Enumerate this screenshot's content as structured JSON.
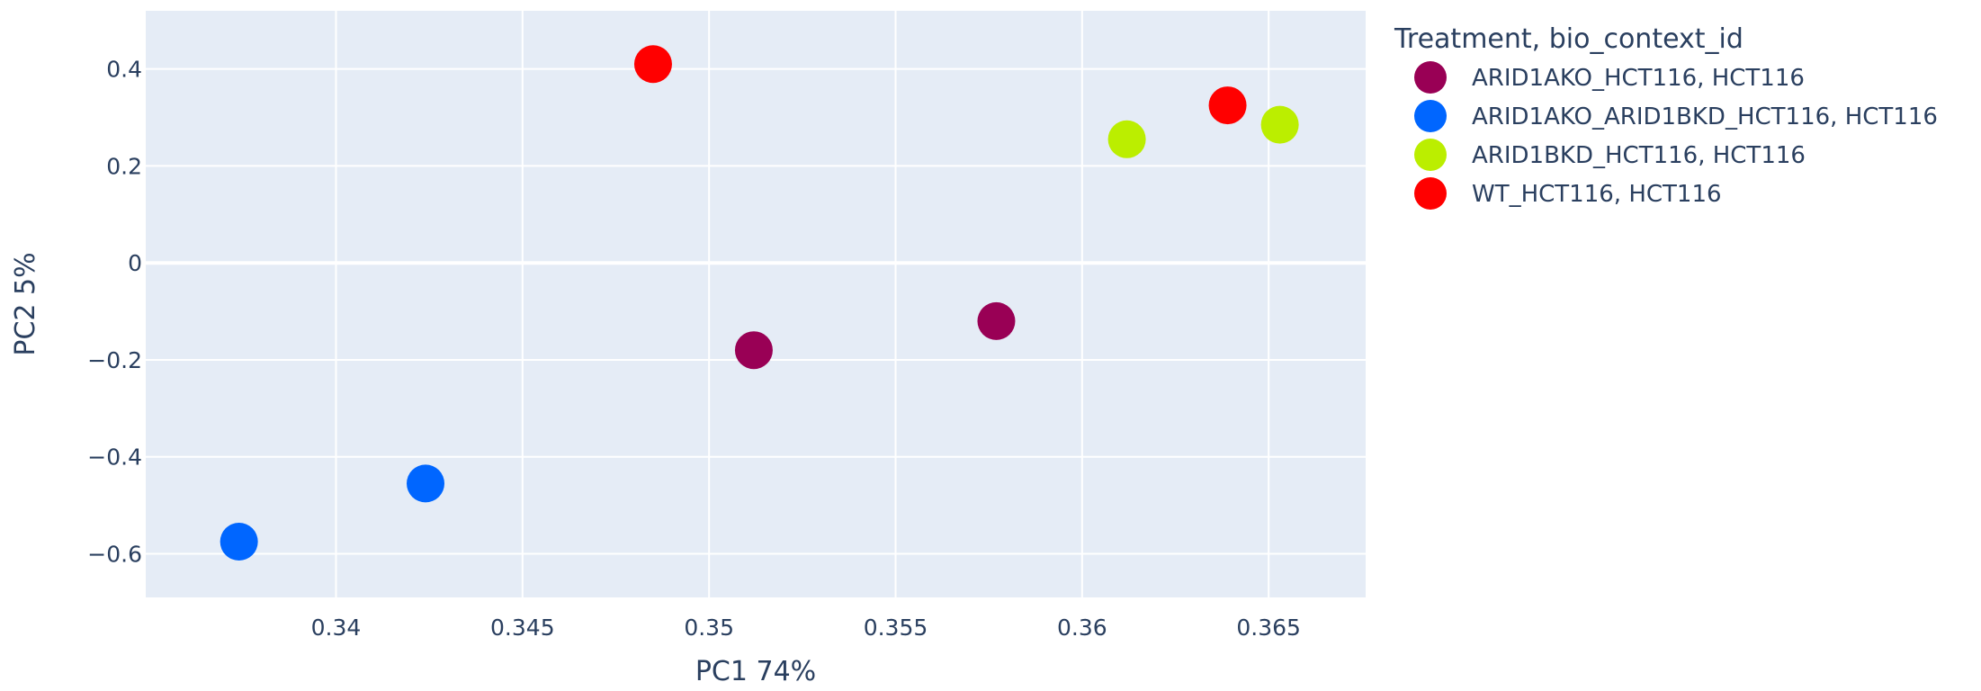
{
  "chart_data": {
    "type": "scatter",
    "xlabel": "PC1 74%",
    "ylabel": "PC2 5%",
    "xlim": [
      0.3349,
      0.3676
    ],
    "ylim": [
      -0.69,
      0.52
    ],
    "xticks": [
      0.34,
      0.345,
      0.35,
      0.355,
      0.36,
      0.365
    ],
    "xtick_labels": [
      "0.34",
      "0.345",
      "0.35",
      "0.355",
      "0.36",
      "0.365"
    ],
    "yticks": [
      -0.6,
      -0.4,
      -0.2,
      0,
      0.2,
      0.4
    ],
    "ytick_labels": [
      "−0.6",
      "−0.4",
      "−0.2",
      "0",
      "0.2",
      "0.4"
    ],
    "grid": true,
    "legend": {
      "title": "Treatment, bio_context_id",
      "placement": "right"
    },
    "series": [
      {
        "name": "ARID1AKO_HCT116, HCT116",
        "color": "#990055",
        "points": [
          {
            "x": 0.3512,
            "y": -0.18
          },
          {
            "x": 0.3577,
            "y": -0.12
          }
        ]
      },
      {
        "name": "ARID1AKO_ARID1BKD_HCT116, HCT116",
        "color": "#0066ff",
        "points": [
          {
            "x": 0.3374,
            "y": -0.575
          },
          {
            "x": 0.3424,
            "y": -0.455
          }
        ]
      },
      {
        "name": "ARID1BKD_HCT116, HCT116",
        "color": "#bbee00",
        "points": [
          {
            "x": 0.3612,
            "y": 0.255
          },
          {
            "x": 0.3653,
            "y": 0.285
          }
        ]
      },
      {
        "name": "WT_HCT116, HCT116",
        "color": "#ff0000",
        "points": [
          {
            "x": 0.3485,
            "y": 0.41
          },
          {
            "x": 0.3639,
            "y": 0.325
          }
        ]
      }
    ]
  }
}
